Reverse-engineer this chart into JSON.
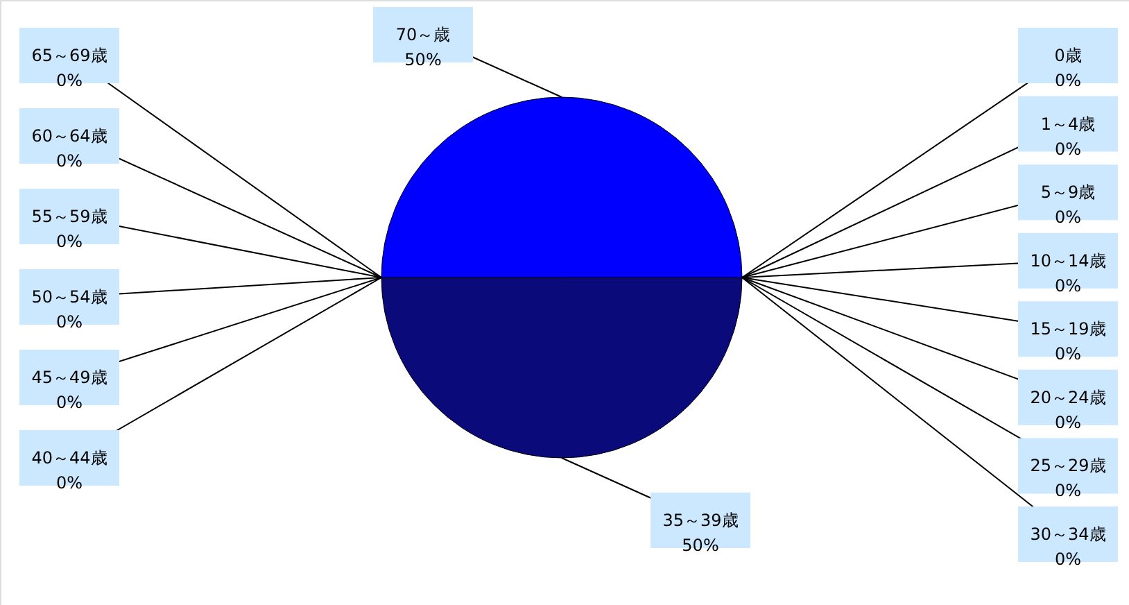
{
  "chart_data": {
    "type": "pie",
    "categories": [
      "0歳",
      "1～4歳",
      "5～9歳",
      "10～14歳",
      "15～19歳",
      "20～24歳",
      "25～29歳",
      "30～34歳",
      "35～39歳",
      "40～44歳",
      "45～49歳",
      "50～54歳",
      "55～59歳",
      "60～64歳",
      "65～69歳",
      "70～歳"
    ],
    "values": [
      0,
      0,
      0,
      0,
      0,
      0,
      0,
      0,
      50,
      0,
      0,
      0,
      0,
      0,
      0,
      50
    ],
    "value_labels": [
      "0%",
      "0%",
      "0%",
      "0%",
      "0%",
      "0%",
      "0%",
      "0%",
      "50%",
      "0%",
      "0%",
      "0%",
      "0%",
      "0%",
      "0%",
      "50%"
    ],
    "colors": [
      "#3333cc",
      "#3333cc",
      "#3333cc",
      "#3333cc",
      "#3333cc",
      "#3333cc",
      "#3333cc",
      "#3333cc",
      "#0a0a7a",
      "#3333cc",
      "#3333cc",
      "#3333cc",
      "#3333cc",
      "#3333cc",
      "#3333cc",
      "#0000ff"
    ],
    "data_labels": false
  }
}
